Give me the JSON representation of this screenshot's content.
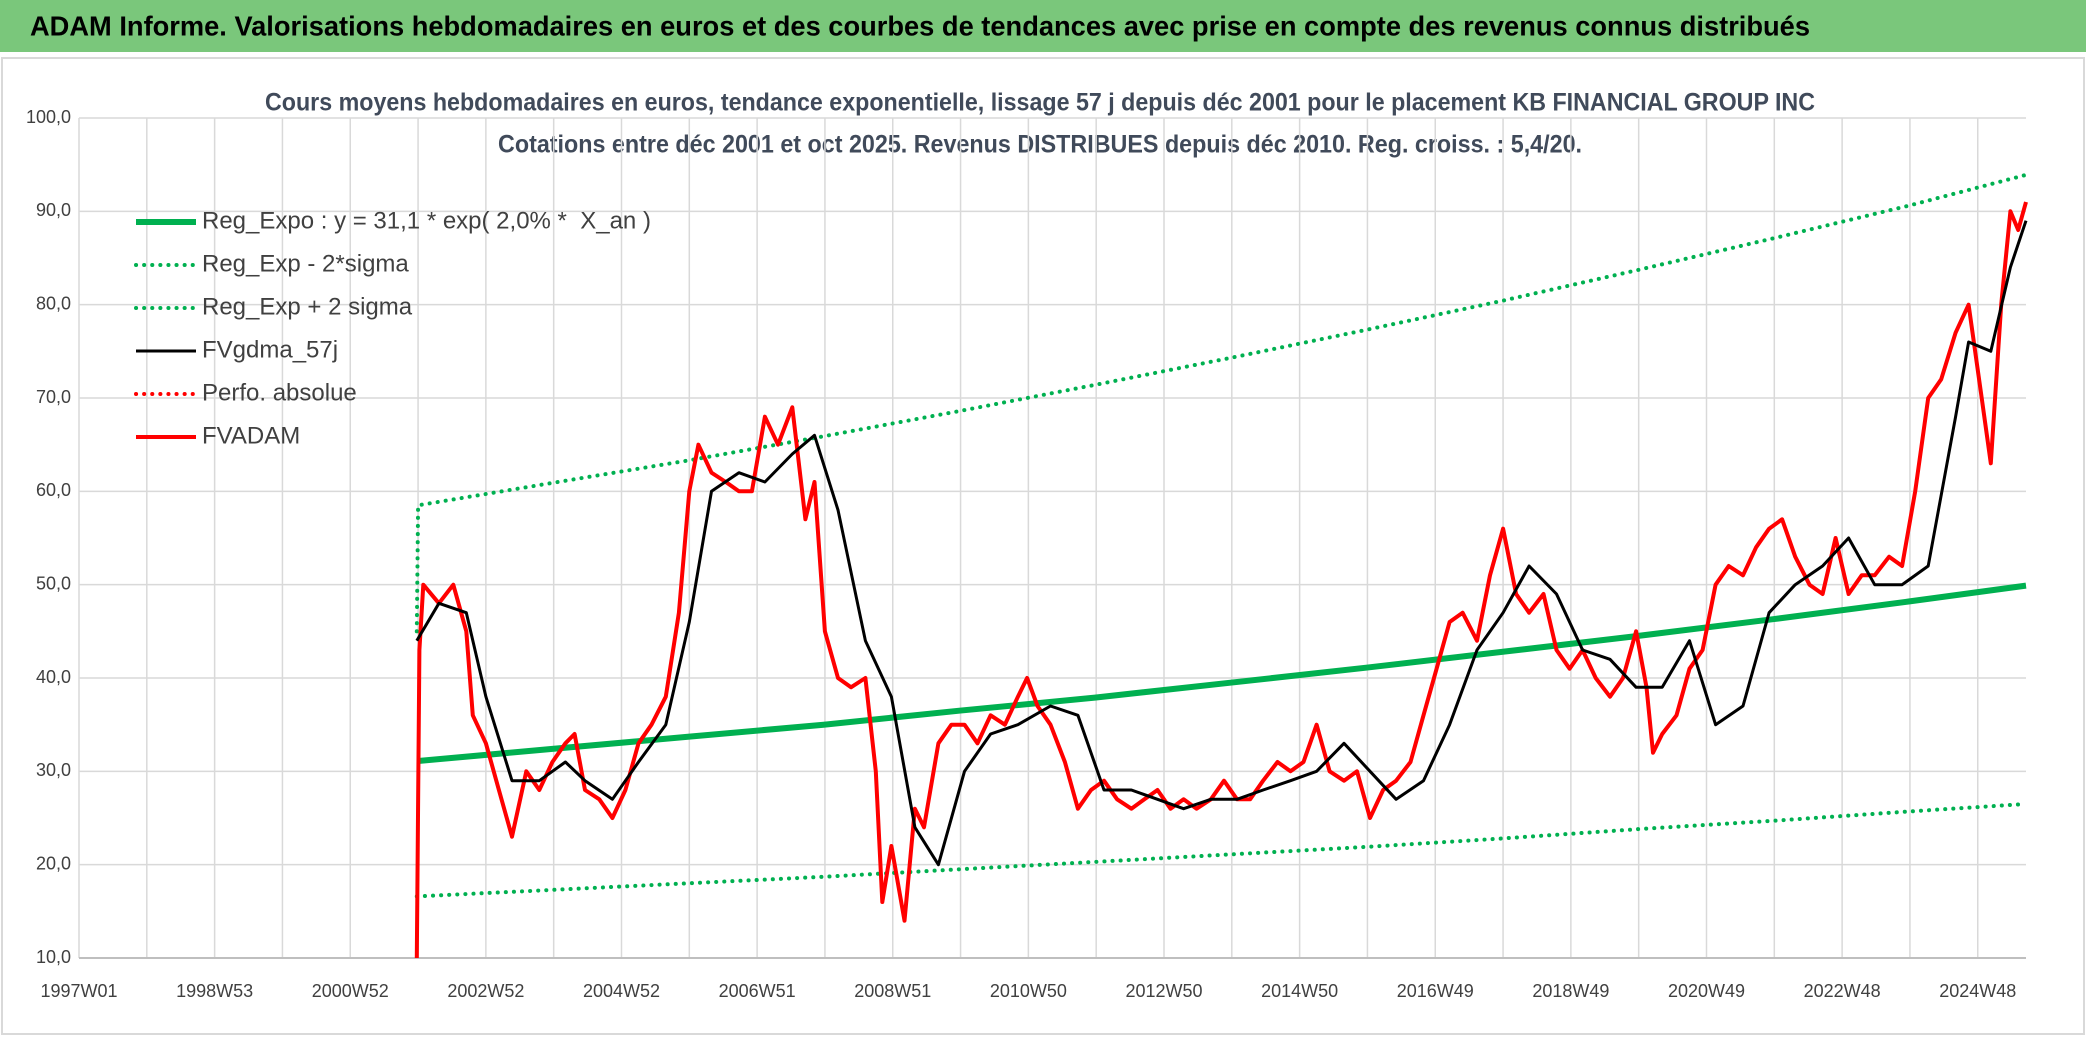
{
  "header": {
    "title": "ADAM Informe. Valorisations hebdomadaires en euros et des courbes de tendances avec prise en compte des revenus connus distribués"
  },
  "chart_data": {
    "type": "line",
    "title": "Cours moyens hebdomadaires en euros, tendance exponentielle, lissage 57 j depuis déc 2001 pour le placement KB FINANCIAL GROUP INC",
    "subtitle": "Cotations entre déc 2001 et oct 2025. Revenus DISTRIBUES depuis déc 2010. Reg. croiss. : 5,4/20.",
    "xlim": [
      0,
      1493
    ],
    "xticks": [
      {
        "value": 0,
        "label": "1997W01"
      },
      {
        "value": 104,
        "label": "1998W53"
      },
      {
        "value": 208,
        "label": "2000W52"
      },
      {
        "value": 312,
        "label": "2002W52"
      },
      {
        "value": 416,
        "label": "2004W52"
      },
      {
        "value": 520,
        "label": "2006W51"
      },
      {
        "value": 624,
        "label": "2008W51"
      },
      {
        "value": 728,
        "label": "2010W50"
      },
      {
        "value": 832,
        "label": "2012W50"
      },
      {
        "value": 936,
        "label": "2014W50"
      },
      {
        "value": 1040,
        "label": "2016W49"
      },
      {
        "value": 1144,
        "label": "2018W49"
      },
      {
        "value": 1248,
        "label": "2020W49"
      },
      {
        "value": 1352,
        "label": "2022W48"
      },
      {
        "value": 1456,
        "label": "2024W48"
      }
    ],
    "ylim": [
      10,
      100
    ],
    "yticks": [
      {
        "value": 10,
        "label": "10,0"
      },
      {
        "value": 20,
        "label": "20,0"
      },
      {
        "value": 30,
        "label": "30,0"
      },
      {
        "value": 40,
        "label": "40,0"
      },
      {
        "value": 50,
        "label": "50,0"
      },
      {
        "value": 60,
        "label": "60,0"
      },
      {
        "value": 70,
        "label": "70,0"
      },
      {
        "value": 80,
        "label": "80,0"
      },
      {
        "value": 90,
        "label": "90,0"
      },
      {
        "value": 100,
        "label": "100,0"
      }
    ],
    "grid": true,
    "legend": "upper left",
    "series": [
      {
        "name": "Reg_Expo : y = 31,1 * exp( 2,0% *  X_an )",
        "color": "#00b050",
        "style": "solid",
        "width": 6,
        "x": [
          259,
          363,
          467,
          571,
          675,
          779,
          883,
          987,
          1091,
          1195,
          1299,
          1403,
          1493
        ],
        "values": [
          31.1,
          32.4,
          33.7,
          35.0,
          36.5,
          37.9,
          39.5,
          41.1,
          42.8,
          44.5,
          46.3,
          48.2,
          49.9
        ]
      },
      {
        "name": "Reg_Exp - 2*sigma",
        "color": "#00b050",
        "style": "dotted",
        "width": 4,
        "x": [
          259,
          363,
          467,
          571,
          675,
          779,
          883,
          987,
          1091,
          1195,
          1299,
          1403,
          1493
        ],
        "values": [
          16.6,
          17.3,
          18.0,
          18.7,
          19.5,
          20.3,
          21.1,
          21.9,
          22.8,
          23.8,
          24.7,
          25.7,
          26.5
        ]
      },
      {
        "name": "Reg_Exp + 2 sigma",
        "color": "#00b050",
        "style": "dotted",
        "width": 4,
        "x": [
          259,
          260,
          363,
          467,
          571,
          675,
          779,
          883,
          987,
          1091,
          1195,
          1299,
          1403,
          1493
        ],
        "values": [
          45,
          58.5,
          60.9,
          63.3,
          65.9,
          68.6,
          71.4,
          74.3,
          77.3,
          80.4,
          83.7,
          87.1,
          90.6,
          93.9
        ]
      },
      {
        "name": "FVgdma_57j",
        "color": "#000000",
        "style": "solid",
        "width": 3,
        "x": [
          259,
          276,
          297,
          312,
          332,
          353,
          373,
          388,
          409,
          429,
          450,
          468,
          485,
          506,
          526,
          547,
          564,
          582,
          603,
          623,
          641,
          659,
          679,
          699,
          720,
          745,
          766,
          786,
          807,
          827,
          847,
          868,
          888,
          908,
          929,
          949,
          970,
          990,
          1010,
          1031,
          1051,
          1072,
          1092,
          1112,
          1133,
          1153,
          1174,
          1194,
          1214,
          1235,
          1255,
          1276,
          1296,
          1316,
          1337,
          1357,
          1377,
          1398,
          1418,
          1439,
          1449,
          1466,
          1481,
          1493
        ],
        "values": [
          44,
          48,
          47,
          38,
          29,
          29,
          31,
          29,
          27,
          31,
          35,
          46,
          60,
          62,
          61,
          64,
          66,
          58,
          44,
          38,
          24,
          20,
          30,
          34,
          35,
          37,
          36,
          28,
          28,
          27,
          26,
          27,
          27,
          28,
          29,
          30,
          33,
          30,
          27,
          29,
          35,
          43,
          47,
          52,
          49,
          43,
          42,
          39,
          39,
          44,
          35,
          37,
          47,
          50,
          52,
          55,
          50,
          50,
          52,
          68,
          76,
          75,
          84,
          89
        ]
      },
      {
        "name": "Perfo. absolue",
        "color": "#ff0000",
        "style": "dotted",
        "width": 4,
        "x": [],
        "values": []
      },
      {
        "name": "FVADAM",
        "color": "#ff0000",
        "style": "solid",
        "width": 4,
        "x": [
          259,
          261,
          264,
          276,
          287,
          297,
          302,
          312,
          322,
          332,
          343,
          353,
          363,
          373,
          380,
          388,
          399,
          409,
          419,
          429,
          439,
          450,
          460,
          468,
          475,
          485,
          496,
          506,
          516,
          526,
          536,
          547,
          557,
          564,
          572,
          582,
          592,
          603,
          611,
          616,
          623,
          633,
          641,
          648,
          659,
          669,
          679,
          689,
          699,
          710,
          720,
          727,
          735,
          745,
          756,
          766,
          776,
          786,
          796,
          807,
          817,
          827,
          837,
          847,
          857,
          868,
          878,
          888,
          898,
          908,
          919,
          929,
          939,
          949,
          959,
          970,
          980,
          990,
          1000,
          1010,
          1021,
          1031,
          1041,
          1051,
          1061,
          1072,
          1082,
          1092,
          1102,
          1112,
          1123,
          1133,
          1143,
          1153,
          1163,
          1174,
          1184,
          1194,
          1202,
          1207,
          1214,
          1225,
          1235,
          1245,
          1255,
          1265,
          1276,
          1286,
          1296,
          1306,
          1316,
          1327,
          1337,
          1347,
          1357,
          1367,
          1377,
          1388,
          1398,
          1408,
          1418,
          1428,
          1439,
          1449,
          1459,
          1466,
          1474,
          1481,
          1487,
          1493
        ],
        "values": [
          10,
          43,
          50,
          48,
          50,
          45,
          36,
          33,
          28,
          23,
          30,
          28,
          31,
          33,
          34,
          28,
          27,
          25,
          28,
          33,
          35,
          38,
          47,
          60,
          65,
          62,
          61,
          60,
          60,
          68,
          65,
          69,
          57,
          61,
          45,
          40,
          39,
          40,
          30,
          16,
          22,
          14,
          26,
          24,
          33,
          35,
          35,
          33,
          36,
          35,
          38,
          40,
          37,
          35,
          31,
          26,
          28,
          29,
          27,
          26,
          27,
          28,
          26,
          27,
          26,
          27,
          29,
          27,
          27,
          29,
          31,
          30,
          31,
          35,
          30,
          29,
          30,
          25,
          28,
          29,
          31,
          36,
          41,
          46,
          47,
          44,
          51,
          56,
          49,
          47,
          49,
          43,
          41,
          43,
          40,
          38,
          40,
          45,
          39,
          32,
          34,
          36,
          41,
          43,
          50,
          52,
          51,
          54,
          56,
          57,
          53,
          50,
          49,
          55,
          49,
          51,
          51,
          53,
          52,
          60,
          70,
          72,
          77,
          80,
          70,
          63,
          80,
          90,
          88,
          91
        ]
      }
    ]
  }
}
